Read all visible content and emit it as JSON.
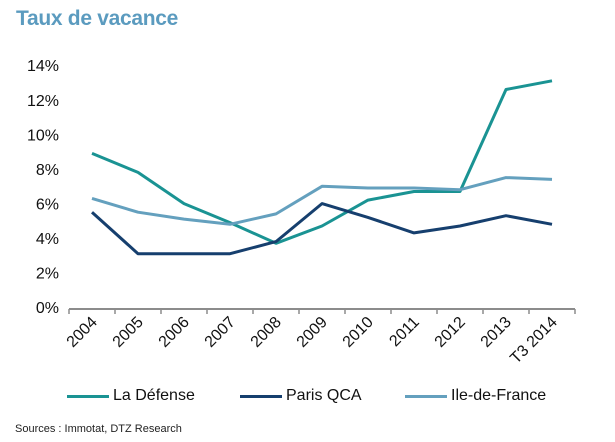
{
  "title": "Taux de vacance",
  "source": "Sources : Immotat, DTZ Research",
  "chart_data": {
    "type": "line",
    "title": "Taux de vacance",
    "xlabel": "",
    "ylabel": "",
    "categories": [
      "2004",
      "2005",
      "2006",
      "2007",
      "2008",
      "2009",
      "2010",
      "2011",
      "2012",
      "2013",
      "T3 2014"
    ],
    "ylim": [
      0,
      14
    ],
    "yticks": [
      "0%",
      "2%",
      "4%",
      "6%",
      "8%",
      "10%",
      "12%",
      "14%"
    ],
    "ytick_values": [
      0,
      2,
      4,
      6,
      8,
      10,
      12,
      14
    ],
    "grid": false,
    "legend_position": "bottom",
    "series": [
      {
        "name": "La Défense",
        "color": "#1A9393",
        "values": [
          9.0,
          7.9,
          6.1,
          5.0,
          3.8,
          4.8,
          6.3,
          6.8,
          6.8,
          12.7,
          13.2
        ]
      },
      {
        "name": "Paris QCA",
        "color": "#163F6E",
        "values": [
          5.6,
          3.2,
          3.2,
          3.2,
          3.9,
          6.1,
          5.3,
          4.4,
          4.8,
          5.4,
          4.9
        ]
      },
      {
        "name": "Ile-de-France",
        "color": "#64A0BE",
        "values": [
          6.4,
          5.6,
          5.2,
          4.9,
          5.5,
          7.1,
          7.0,
          7.0,
          6.9,
          7.6,
          7.5
        ]
      }
    ]
  }
}
